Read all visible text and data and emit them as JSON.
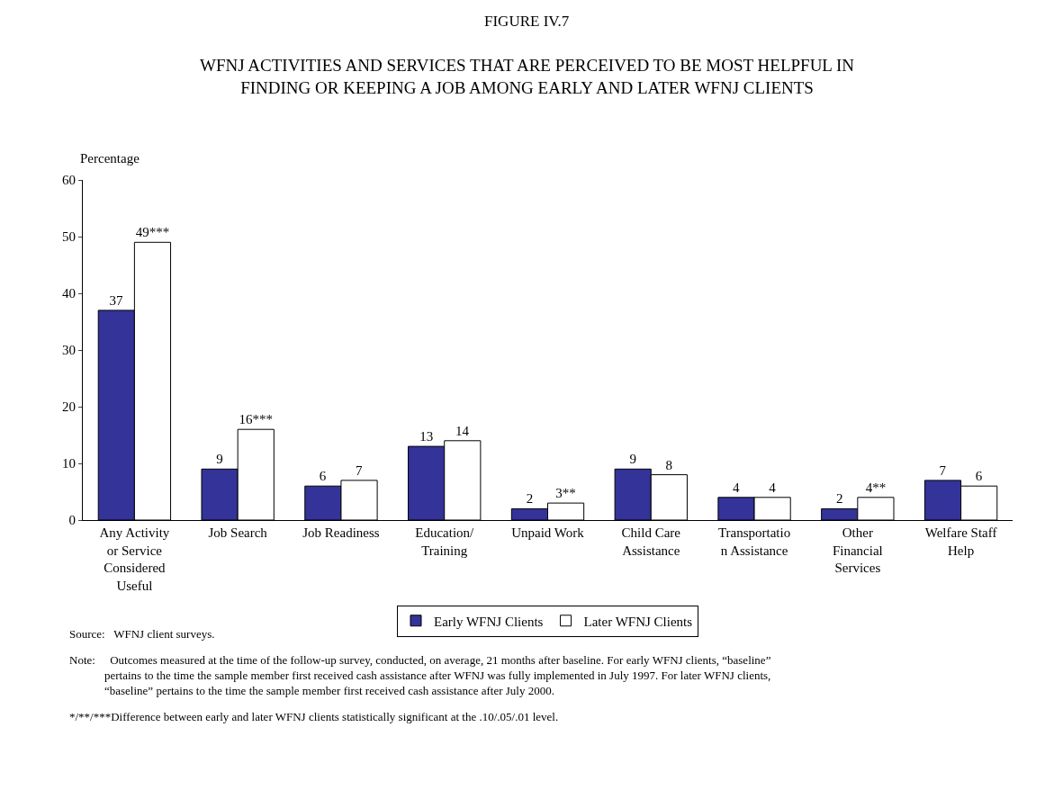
{
  "chart_data": {
    "type": "bar",
    "title": "FIGURE IV.7",
    "subtitle": "WFNJ ACTIVITIES AND SERVICES THAT ARE PERCEIVED TO BE MOST HELPFUL IN FINDING OR KEEPING A JOB AMONG EARLY AND LATER WFNJ CLIENTS",
    "ylabel": "Percentage",
    "categories": [
      "Any Activity or Service Considered Useful",
      "Job Search",
      "Job Readiness",
      "Education/ Training",
      "Unpaid Work",
      "Child Care Assistance",
      "Transportation Assistance",
      "Other Financial Services",
      "Welfare Staff Help"
    ],
    "series": [
      {
        "name": "Early WFNJ Clients",
        "color": "#333399",
        "values": [
          37,
          9,
          6,
          13,
          2,
          9,
          4,
          2,
          7
        ],
        "value_labels": [
          "37",
          "9",
          "6",
          "13",
          "2",
          "9",
          "4",
          "2",
          "7"
        ]
      },
      {
        "name": "Later WFNJ Clients",
        "color": "#ffffff",
        "values": [
          49,
          16,
          7,
          14,
          3,
          8,
          4,
          4,
          6
        ],
        "value_labels": [
          "49***",
          "16***",
          "7",
          "14",
          "3**",
          "8",
          "4",
          "4**",
          "6"
        ]
      }
    ],
    "ylim": [
      0,
      60
    ],
    "yticks": [
      0,
      10,
      20,
      30,
      40,
      50,
      60
    ],
    "legend": "bottom",
    "annotations": [
      "Source:   WFNJ client surveys.",
      "Note:     Outcomes measured at the time of the follow-up survey, conducted, on average, 21 months after baseline. For early WFNJ clients, “baseline” pertains to the time the sample member first received cash assistance after WFNJ was fully implemented in July 1997. For later WFNJ clients, “baseline” pertains to the time the sample member first received cash assistance after July 2000.",
      "*/**/***Difference between early and later WFNJ clients statistically significant at the .10/.05/.01 level."
    ]
  }
}
